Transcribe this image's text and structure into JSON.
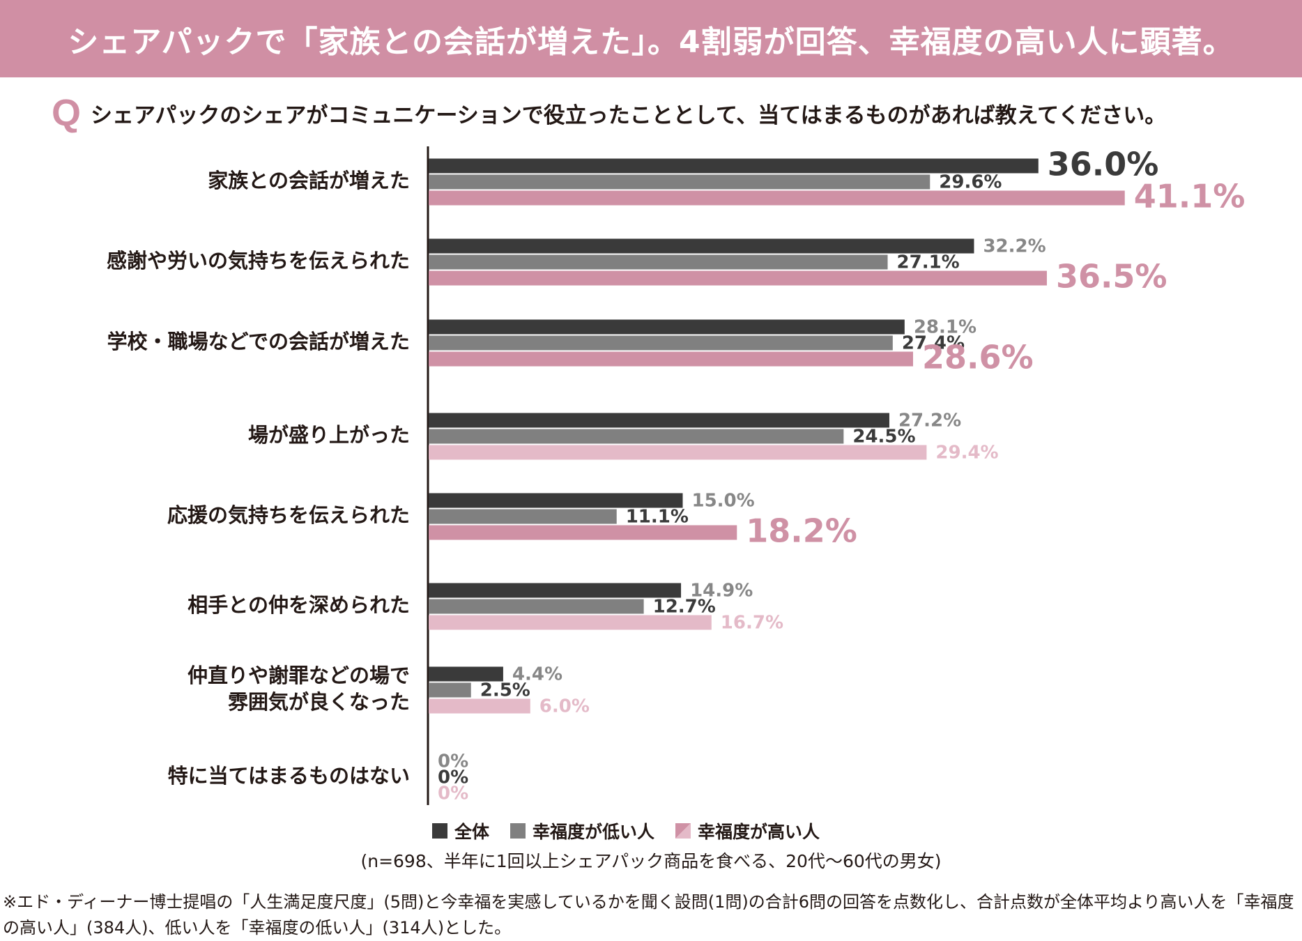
{
  "header": {
    "title": "シェアパックで「家族との会話が増えた」。4割弱が回答、幸福度の高い人に顕著。"
  },
  "question": {
    "mark": "Q",
    "text": "シェアパックのシェアがコミュニケーションで役立ったこととして、当てはまるものがあれば教えてください。"
  },
  "colors": {
    "banner": "#d08fa4",
    "all": "#3a3a3a",
    "low": "#808080",
    "high": "#cf91a5",
    "high_light": "#e4bac8",
    "label_gray": "#878787",
    "label_dark": "#3a3a3a"
  },
  "chart_data": {
    "type": "bar",
    "orientation": "horizontal",
    "categories": [
      "家族との会話が増えた",
      "感謝や労いの気持ちを伝えられた",
      "学校・職場などでの会話が増えた",
      "場が盛り上がった",
      "応援の気持ちを伝えられた",
      "相手との仲を深められた",
      "仲直りや謝罪などの場で\n雰囲気が良くなった",
      "特に当てはまるものはない"
    ],
    "series": [
      {
        "name": "全体",
        "values": [
          36.0,
          32.2,
          28.1,
          27.2,
          15.0,
          14.9,
          4.4,
          0
        ]
      },
      {
        "name": "幸福度が低い人",
        "values": [
          29.6,
          27.1,
          27.4,
          24.5,
          11.1,
          12.7,
          2.5,
          0
        ]
      },
      {
        "name": "幸福度が高い人",
        "values": [
          41.1,
          36.5,
          28.6,
          29.4,
          18.2,
          16.7,
          6.0,
          0
        ]
      }
    ],
    "value_labels": [
      [
        "36.0%",
        "29.6%",
        "41.1%"
      ],
      [
        "32.2%",
        "27.1%",
        "36.5%"
      ],
      [
        "28.1%",
        "27.4%",
        "28.6%"
      ],
      [
        "27.2%",
        "24.5%",
        "29.4%"
      ],
      [
        "15.0%",
        "11.1%",
        "18.2%"
      ],
      [
        "14.9%",
        "12.7%",
        "16.7%"
      ],
      [
        "4.4%",
        "2.5%",
        "6.0%"
      ],
      [
        "0%",
        "0%",
        "0%"
      ]
    ],
    "highlight_high": [
      true,
      true,
      true,
      false,
      true,
      false,
      false,
      false
    ],
    "unit": "%",
    "xlim": [
      0,
      45
    ],
    "grid": false,
    "legend_position": "bottom"
  },
  "legend": {
    "items": [
      {
        "label": "全体"
      },
      {
        "label": "幸福度が低い人"
      },
      {
        "label": "幸福度が高い人"
      }
    ]
  },
  "notes": {
    "sample": "(n=698、半年に1回以上シェアパック商品を食べる、20代～60代の男女)",
    "footnote": "※エド・ディーナー博士提唱の「人生満足度尺度」(5問)と今幸福を実感しているかを聞く設問(1問)の合計6問の回答を点数化し、合計点数が全体平均より高い人を「幸福度の高い人」(384人)、低い人を「幸福度の低い人」(314人)とした。"
  }
}
